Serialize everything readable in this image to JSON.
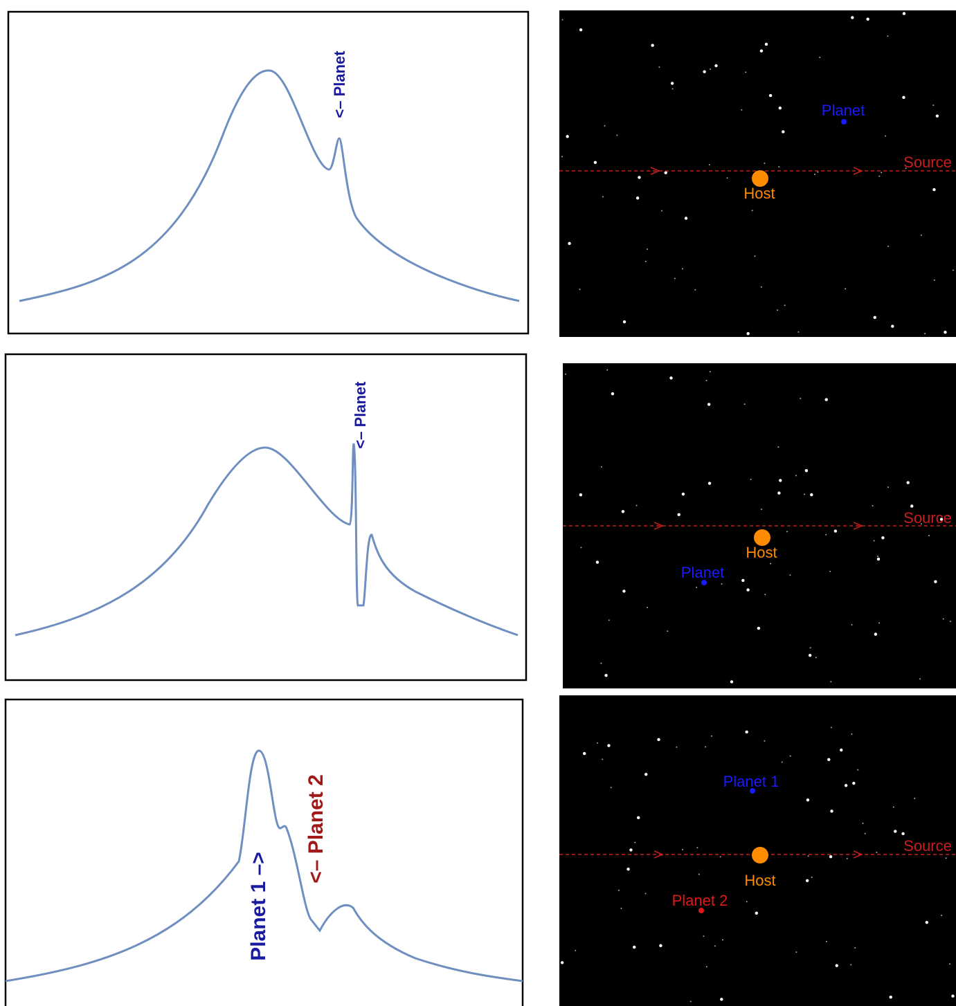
{
  "panels": [
    {
      "curve_labels": [
        "<– Planet"
      ],
      "map": {
        "planet": "Planet",
        "source": "Source",
        "host": "Host"
      }
    },
    {
      "curve_labels": [
        "<– Planet"
      ],
      "map": {
        "planet": "Planet",
        "source": "Source",
        "host": "Host"
      }
    },
    {
      "curve_labels": [
        "Planet 1 –>",
        "<– Planet 2"
      ],
      "map": {
        "planet_1": "Planet 1",
        "planet_2": "Planet 2",
        "source": "Source",
        "host": "Host"
      }
    }
  ]
}
